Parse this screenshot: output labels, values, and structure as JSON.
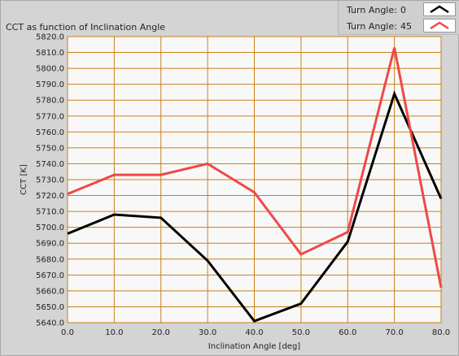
{
  "chart_data": {
    "type": "line",
    "title": "CCT as function of Inclination Angle",
    "xlabel": "Inclination Angle [deg]",
    "ylabel": "CCT [K]",
    "x": [
      0,
      10,
      20,
      30,
      40,
      50,
      60,
      70,
      80
    ],
    "xlim": [
      0,
      80
    ],
    "ylim": [
      5640,
      5820
    ],
    "x_ticks": [
      "0.0",
      "10.0",
      "20.0",
      "30.0",
      "40.0",
      "50.0",
      "60.0",
      "70.0",
      "80.0"
    ],
    "y_ticks": [
      "5640.0",
      "5650.0",
      "5660.0",
      "5670.0",
      "5680.0",
      "5690.0",
      "5700.0",
      "5710.0",
      "5720.0",
      "5730.0",
      "5740.0",
      "5750.0",
      "5760.0",
      "5770.0",
      "5780.0",
      "5790.0",
      "5800.0",
      "5810.0",
      "5820.0"
    ],
    "grid": true,
    "legend_position": "top-right",
    "colors": {
      "plot_bg": "#f8f8f8",
      "grid": "#c8801a",
      "frame": "#d4d4d4"
    },
    "series": [
      {
        "name": "Turn Angle:",
        "value": "0",
        "color": "#000000",
        "values": [
          5696,
          5708,
          5706,
          5679,
          5641,
          5652,
          5691,
          5784,
          5718
        ]
      },
      {
        "name": "Turn Angle:",
        "value": "45",
        "color": "#f04848",
        "values": [
          5721,
          5733,
          5733,
          5740,
          5722,
          5683,
          5697,
          5813,
          5662
        ]
      }
    ]
  }
}
